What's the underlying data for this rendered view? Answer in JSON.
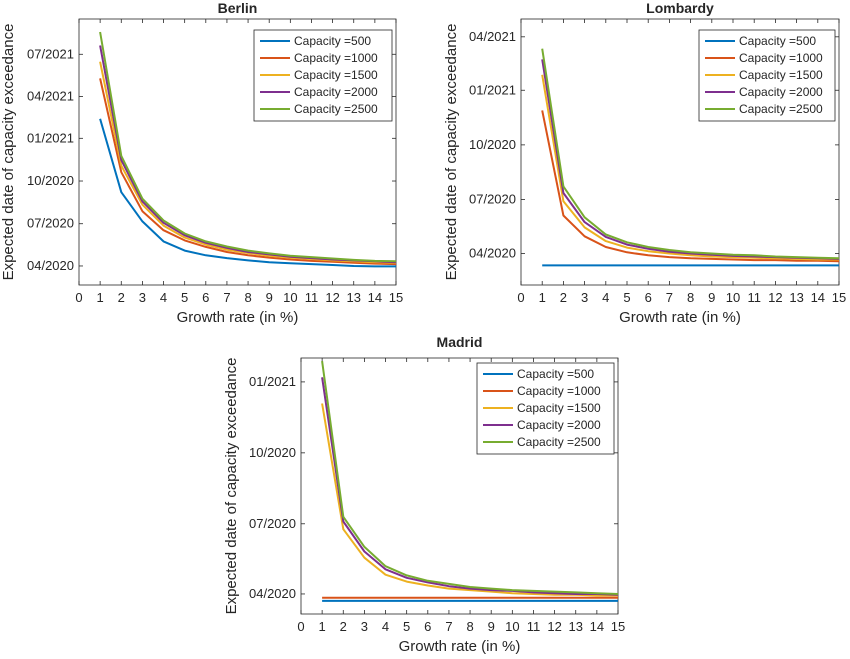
{
  "chart_data": [
    {
      "type": "line",
      "title": "Berlin",
      "xlabel": "Growth rate (in %)",
      "ylabel": "Expected date of capacity exceedance",
      "xlim": [
        0,
        15
      ],
      "xticks": [
        "0",
        "1",
        "2",
        "3",
        "4",
        "5",
        "6",
        "7",
        "8",
        "9",
        "10",
        "11",
        "12",
        "13",
        "14",
        "15"
      ],
      "ylim": [
        "2020-02-20",
        "2021-09-15"
      ],
      "yticks": [
        {
          "date": "2020-04-01",
          "label": "04/2020"
        },
        {
          "date": "2020-07-01",
          "label": "07/2020"
        },
        {
          "date": "2020-10-01",
          "label": "10/2020"
        },
        {
          "date": "2021-01-01",
          "label": "01/2021"
        },
        {
          "date": "2021-04-01",
          "label": "04/2021"
        },
        {
          "date": "2021-07-01",
          "label": "07/2021"
        }
      ],
      "legend_position": "top-right",
      "grid": false,
      "x": [
        1,
        2,
        3,
        4,
        5,
        6,
        7,
        8,
        9,
        10,
        11,
        12,
        13,
        14,
        15
      ],
      "series": [
        {
          "name": "Capacity =500",
          "color": "#0072BD",
          "values": [
            "2021-02-12",
            "2020-09-07",
            "2020-07-06",
            "2020-05-24",
            "2020-05-04",
            "2020-04-24",
            "2020-04-18",
            "2020-04-13",
            "2020-04-09",
            "2020-04-07",
            "2020-04-05",
            "2020-04-03",
            "2020-04-01",
            "2020-03-31",
            "2020-03-31"
          ]
        },
        {
          "name": "Capacity =1000",
          "color": "#D95319",
          "values": [
            "2021-05-10",
            "2020-10-20",
            "2020-07-28",
            "2020-06-17",
            "2020-05-26",
            "2020-05-12",
            "2020-05-01",
            "2020-04-24",
            "2020-04-19",
            "2020-04-15",
            "2020-04-12",
            "2020-04-10",
            "2020-04-08",
            "2020-04-06",
            "2020-04-05"
          ]
        },
        {
          "name": "Capacity =1500",
          "color": "#EDB120",
          "values": [
            "2021-06-15",
            "2020-11-03",
            "2020-08-11",
            "2020-06-27",
            "2020-06-01",
            "2020-05-17",
            "2020-05-06",
            "2020-04-29",
            "2020-04-23",
            "2020-04-19",
            "2020-04-16",
            "2020-04-13",
            "2020-04-11",
            "2020-04-09",
            "2020-04-08"
          ]
        },
        {
          "name": "Capacity =2000",
          "color": "#7E2F8E",
          "values": [
            "2021-07-20",
            "2020-11-15",
            "2020-08-18",
            "2020-07-03",
            "2020-06-06",
            "2020-05-21",
            "2020-05-10",
            "2020-05-01",
            "2020-04-26",
            "2020-04-21",
            "2020-04-18",
            "2020-04-15",
            "2020-04-13",
            "2020-04-11",
            "2020-04-09"
          ]
        },
        {
          "name": "Capacity =2500",
          "color": "#77AC30",
          "values": [
            "2021-08-18",
            "2020-11-24",
            "2020-08-24",
            "2020-07-08",
            "2020-06-10",
            "2020-05-24",
            "2020-05-13",
            "2020-05-04",
            "2020-04-28",
            "2020-04-23",
            "2020-04-20",
            "2020-04-17",
            "2020-04-14",
            "2020-04-12",
            "2020-04-11"
          ]
        }
      ]
    },
    {
      "type": "line",
      "title": "Lombardy",
      "xlabel": "Growth rate (in %)",
      "ylabel": "Expected date of capacity exceedance",
      "xlim": [
        0,
        15
      ],
      "xticks": [
        "0",
        "1",
        "2",
        "3",
        "4",
        "5",
        "6",
        "7",
        "8",
        "9",
        "10",
        "11",
        "12",
        "13",
        "14",
        "15"
      ],
      "ylim": [
        "2020-02-08",
        "2021-05-01"
      ],
      "yticks": [
        {
          "date": "2020-04-01",
          "label": "04/2020"
        },
        {
          "date": "2020-07-01",
          "label": "07/2020"
        },
        {
          "date": "2020-10-01",
          "label": "10/2020"
        },
        {
          "date": "2021-01-01",
          "label": "01/2021"
        },
        {
          "date": "2021-04-01",
          "label": "04/2021"
        }
      ],
      "legend_position": "top-right",
      "grid": false,
      "x": [
        1,
        2,
        3,
        4,
        5,
        6,
        7,
        8,
        9,
        10,
        11,
        12,
        13,
        14,
        15
      ],
      "series": [
        {
          "name": "Capacity =500",
          "color": "#0072BD",
          "values": [
            "2020-03-12",
            "2020-03-12",
            "2020-03-12",
            "2020-03-12",
            "2020-03-12",
            "2020-03-12",
            "2020-03-12",
            "2020-03-12",
            "2020-03-12",
            "2020-03-12",
            "2020-03-12",
            "2020-03-12",
            "2020-03-12",
            "2020-03-12",
            "2020-03-12"
          ]
        },
        {
          "name": "Capacity =1000",
          "color": "#D95319",
          "values": [
            "2020-11-28",
            "2020-06-04",
            "2020-04-30",
            "2020-04-12",
            "2020-04-03",
            "2020-03-29",
            "2020-03-26",
            "2020-03-24",
            "2020-03-23",
            "2020-03-22",
            "2020-03-21",
            "2020-03-21",
            "2020-03-20",
            "2020-03-20",
            "2020-03-19"
          ]
        },
        {
          "name": "Capacity =1500",
          "color": "#EDB120",
          "values": [
            "2021-01-27",
            "2020-06-28",
            "2020-05-15",
            "2020-04-22",
            "2020-04-11",
            "2020-04-05",
            "2020-04-01",
            "2020-03-29",
            "2020-03-27",
            "2020-03-26",
            "2020-03-25",
            "2020-03-24",
            "2020-03-23",
            "2020-03-22",
            "2020-03-22"
          ]
        },
        {
          "name": "Capacity =2000",
          "color": "#7E2F8E",
          "values": [
            "2021-02-22",
            "2020-07-12",
            "2020-05-24",
            "2020-04-29",
            "2020-04-16",
            "2020-04-09",
            "2020-04-04",
            "2020-04-01",
            "2020-03-30",
            "2020-03-28",
            "2020-03-27",
            "2020-03-26",
            "2020-03-25",
            "2020-03-24",
            "2020-03-23"
          ]
        },
        {
          "name": "Capacity =2500",
          "color": "#77AC30",
          "values": [
            "2021-03-12",
            "2020-07-23",
            "2020-06-01",
            "2020-05-03",
            "2020-04-20",
            "2020-04-12",
            "2020-04-07",
            "2020-04-03",
            "2020-04-01",
            "2020-03-30",
            "2020-03-29",
            "2020-03-27",
            "2020-03-26",
            "2020-03-25",
            "2020-03-24"
          ]
        }
      ]
    },
    {
      "type": "line",
      "title": "Madrid",
      "xlabel": "Growth rate (in %)",
      "ylabel": "Expected date of capacity exceedance",
      "xlim": [
        0,
        15
      ],
      "xticks": [
        "0",
        "1",
        "2",
        "3",
        "4",
        "5",
        "6",
        "7",
        "8",
        "9",
        "10",
        "11",
        "12",
        "13",
        "14",
        "15"
      ],
      "ylim": [
        "2020-03-06",
        "2021-02-01"
      ],
      "yticks": [
        {
          "date": "2020-04-01",
          "label": "04/2020"
        },
        {
          "date": "2020-07-01",
          "label": "07/2020"
        },
        {
          "date": "2020-10-01",
          "label": "10/2020"
        },
        {
          "date": "2021-01-01",
          "label": "01/2021"
        }
      ],
      "legend_position": "top-right",
      "grid": false,
      "x": [
        1,
        2,
        3,
        4,
        5,
        6,
        7,
        8,
        9,
        10,
        11,
        12,
        13,
        14,
        15
      ],
      "series": [
        {
          "name": "Capacity =500",
          "color": "#0072BD",
          "values": [
            "2020-03-23",
            "2020-03-23",
            "2020-03-23",
            "2020-03-23",
            "2020-03-23",
            "2020-03-23",
            "2020-03-23",
            "2020-03-23",
            "2020-03-23",
            "2020-03-23",
            "2020-03-23",
            "2020-03-23",
            "2020-03-23",
            "2020-03-23",
            "2020-03-23"
          ]
        },
        {
          "name": "Capacity =1000",
          "color": "#D95319",
          "values": [
            "2020-03-27",
            "2020-03-27",
            "2020-03-27",
            "2020-03-27",
            "2020-03-27",
            "2020-03-27",
            "2020-03-27",
            "2020-03-27",
            "2020-03-27",
            "2020-03-27",
            "2020-03-27",
            "2020-03-27",
            "2020-03-27",
            "2020-03-27",
            "2020-03-27"
          ]
        },
        {
          "name": "Capacity =1500",
          "color": "#EDB120",
          "values": [
            "2020-12-04",
            "2020-06-24",
            "2020-05-18",
            "2020-04-26",
            "2020-04-17",
            "2020-04-12",
            "2020-04-08",
            "2020-04-06",
            "2020-04-04",
            "2020-04-02",
            "2020-04-01",
            "2020-03-31",
            "2020-03-31",
            "2020-03-30",
            "2020-03-30"
          ]
        },
        {
          "name": "Capacity =2000",
          "color": "#7E2F8E",
          "values": [
            "2021-01-07",
            "2020-07-04",
            "2020-05-26",
            "2020-05-03",
            "2020-04-22",
            "2020-04-16",
            "2020-04-11",
            "2020-04-08",
            "2020-04-06",
            "2020-04-05",
            "2020-04-03",
            "2020-04-02",
            "2020-04-01",
            "2020-04-01",
            "2020-03-31"
          ]
        },
        {
          "name": "Capacity =2500",
          "color": "#77AC30",
          "values": [
            "2021-01-28",
            "2020-07-10",
            "2020-06-01",
            "2020-05-07",
            "2020-04-25",
            "2020-04-18",
            "2020-04-14",
            "2020-04-10",
            "2020-04-08",
            "2020-04-06",
            "2020-04-05",
            "2020-04-04",
            "2020-04-03",
            "2020-04-02",
            "2020-04-01"
          ]
        }
      ]
    }
  ]
}
